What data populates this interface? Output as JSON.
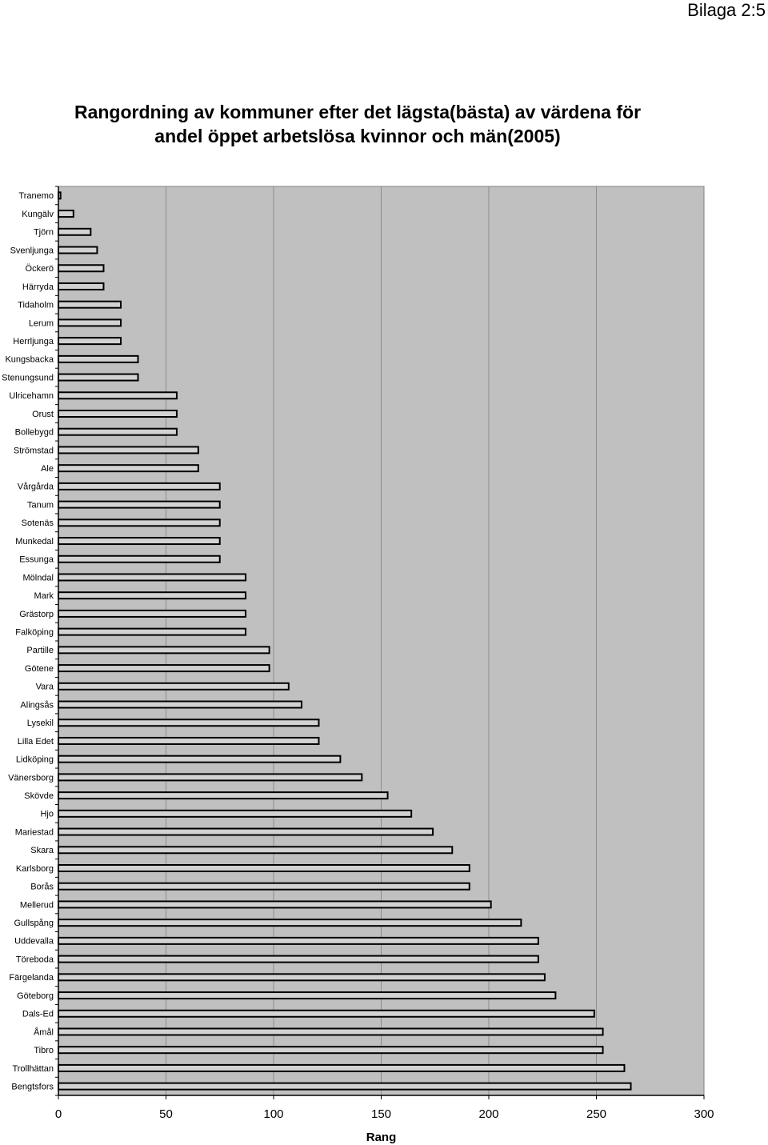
{
  "page": {
    "appendix_label": "Bilaga 2:5"
  },
  "chart_data": {
    "type": "bar",
    "orientation": "horizontal",
    "title": "Rangordning av kommuner efter det lägsta(bästa) av värdena för andel öppet arbetslösa kvinnor och män(2005)",
    "xlabel": "Rang",
    "ylabel": "",
    "xlim": [
      0,
      300
    ],
    "xticks": [
      0,
      50,
      100,
      150,
      200,
      250,
      300
    ],
    "grid": true,
    "legend": "none",
    "categories": [
      "Tranemo",
      "Kungälv",
      "Tjörn",
      "Svenljunga",
      "Öckerö",
      "Härryda",
      "Tidaholm",
      "Lerum",
      "Herrljunga",
      "Kungsbacka",
      "Stenungsund",
      "Ulricehamn",
      "Orust",
      "Bollebygd",
      "Strömstad",
      "Ale",
      "Vårgårda",
      "Tanum",
      "Sotenäs",
      "Munkedal",
      "Essunga",
      "Mölndal",
      "Mark",
      "Grästorp",
      "Falköping",
      "Partille",
      "Götene",
      "Vara",
      "Alingsås",
      "Lysekil",
      "Lilla Edet",
      "Lidköping",
      "Vänersborg",
      "Skövde",
      "Hjo",
      "Mariestad",
      "Skara",
      "Karlsborg",
      "Borås",
      "Mellerud",
      "Gullspång",
      "Uddevalla",
      "Töreboda",
      "Färgelanda",
      "Göteborg",
      "Dals-Ed",
      "Åmål",
      "Tibro",
      "Trollhättan",
      "Bengtsfors"
    ],
    "values": [
      1,
      7,
      15,
      18,
      21,
      21,
      29,
      29,
      29,
      37,
      37,
      55,
      55,
      55,
      65,
      65,
      75,
      75,
      75,
      75,
      75,
      87,
      87,
      87,
      87,
      98,
      98,
      107,
      113,
      121,
      121,
      131,
      141,
      153,
      164,
      174,
      183,
      191,
      191,
      201,
      215,
      223,
      223,
      226,
      231,
      249,
      253,
      253,
      263,
      266
    ],
    "colors": {
      "plot_background": "#c0c0c0",
      "plot_border": "#808080",
      "bar_fill": "#d2d2d2",
      "bar_border": "#000000",
      "gridlines": "#8c8c8c",
      "axis": "#000000"
    }
  }
}
